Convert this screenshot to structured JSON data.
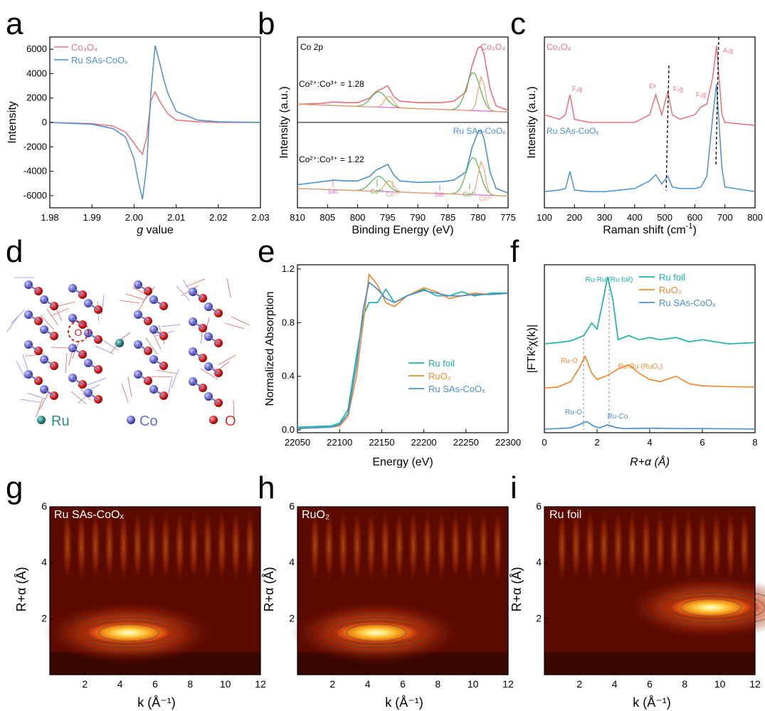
{
  "figure": {
    "panel_letters": [
      "a",
      "b",
      "c",
      "d",
      "e",
      "f",
      "g",
      "h",
      "i"
    ],
    "colors": {
      "co3o4": "#e8707a",
      "ru_sas": "#4a90d0",
      "ru_foil": "#1ab5a8",
      "ruo2": "#f08a30",
      "green": "#4cb84c",
      "pink": "#e070e0",
      "orange_peak": "#f0a070",
      "axis": "#000000"
    }
  },
  "chart_data": [
    {
      "panel": "a",
      "type": "line",
      "xlabel_italic": "g",
      "xlabel_rest": " value",
      "ylabel": "Intensity",
      "xlim": [
        1.98,
        2.03
      ],
      "ylim": [
        -7000,
        7000
      ],
      "xticks": [
        "1.98",
        "1.99",
        "2.00",
        "2.01",
        "2.02",
        "2.03"
      ],
      "yticks": [
        "-6000",
        "-4000",
        "-2000",
        "0",
        "2000",
        "4000",
        "6000"
      ],
      "legend_position": "top-left",
      "series": [
        {
          "name": "Co₃O₄",
          "color": "#e8707a",
          "x": [
            1.98,
            1.99,
            1.995,
            1.998,
            2.0,
            2.001,
            2.002,
            2.003,
            2.004,
            2.005,
            2.006,
            2.008,
            2.01,
            2.015,
            2.02,
            2.03
          ],
          "y": [
            0,
            -100,
            -300,
            -800,
            -1700,
            -2200,
            -2600,
            -1200,
            1800,
            2500,
            1800,
            700,
            200,
            50,
            0,
            0
          ]
        },
        {
          "name": "Ru SAs-CoOₓ",
          "color": "#4a90d0",
          "x": [
            1.98,
            1.99,
            1.995,
            1.998,
            2.0,
            2.001,
            2.002,
            2.003,
            2.004,
            2.005,
            2.006,
            2.007,
            2.008,
            2.01,
            2.015,
            2.02,
            2.03
          ],
          "y": [
            0,
            -150,
            -500,
            -1200,
            -3000,
            -4800,
            -6300,
            -3500,
            2500,
            6300,
            5000,
            3600,
            2400,
            900,
            200,
            50,
            0
          ]
        }
      ]
    },
    {
      "panel": "b",
      "type": "line",
      "xlabel": "Binding Energy (eV)",
      "ylabel": "Intensity (a.u.)",
      "xlim": [
        810,
        775
      ],
      "xticks": [
        "810",
        "805",
        "800",
        "795",
        "790",
        "785",
        "780",
        "775"
      ],
      "labels": {
        "region": "Co 2p",
        "top_sample": "Co₃O₄",
        "bottom_sample": "Ru SAs-CoOₓ",
        "ratio_top": "Co²⁺:Co³⁺ = 1.28",
        "ratio_bottom": "Co²⁺:Co³⁺ = 1.22",
        "sat": "Sat.",
        "co2": "Co²⁺",
        "co3": "Co³⁺"
      },
      "series": [
        {
          "name": "Co₃O₄ data",
          "x": [
            810,
            806,
            804,
            802,
            800,
            798,
            797,
            796,
            795,
            794,
            793,
            790,
            786,
            784,
            782,
            781,
            780,
            779.5,
            779,
            778,
            777,
            775
          ],
          "y": [
            0.2,
            0.21,
            0.23,
            0.22,
            0.22,
            0.28,
            0.36,
            0.4,
            0.44,
            0.3,
            0.24,
            0.22,
            0.22,
            0.24,
            0.36,
            0.7,
            0.93,
            0.95,
            0.85,
            0.4,
            0.18,
            0.12
          ]
        },
        {
          "name": "Ru SAs-CoOₓ data",
          "x": [
            810,
            806,
            804,
            802,
            800,
            798,
            797,
            796,
            795,
            794,
            793,
            790,
            786,
            784,
            782,
            781,
            780,
            779.5,
            779,
            778,
            777,
            775
          ],
          "y": [
            0.25,
            0.29,
            0.31,
            0.3,
            0.3,
            0.36,
            0.44,
            0.48,
            0.52,
            0.38,
            0.3,
            0.28,
            0.29,
            0.31,
            0.42,
            0.74,
            0.95,
            0.97,
            0.86,
            0.42,
            0.2,
            0.14
          ]
        }
      ]
    },
    {
      "panel": "c",
      "type": "line",
      "xlabel_main": "Raman shift (cm",
      "xlabel_sup": "-1",
      "xlabel_end": ")",
      "ylabel": "Intensity (a.u.)",
      "xlim": [
        100,
        800
      ],
      "xticks": [
        "100",
        "200",
        "300",
        "400",
        "500",
        "600",
        "700",
        "800"
      ],
      "peak_labels": [
        "F₂g",
        "Eᵍ",
        "F₂g",
        "F₂g",
        "A₁g"
      ],
      "series": [
        {
          "name": "Co₃O₄",
          "color": "#e8707a",
          "x": [
            100,
            150,
            170,
            185,
            200,
            250,
            300,
            400,
            450,
            470,
            490,
            510,
            525,
            550,
            600,
            620,
            640,
            660,
            672,
            690,
            700,
            800
          ],
          "y": [
            0.55,
            0.52,
            0.55,
            0.68,
            0.52,
            0.5,
            0.5,
            0.5,
            0.55,
            0.68,
            0.55,
            0.7,
            0.55,
            0.52,
            0.55,
            0.6,
            0.62,
            0.8,
            1.0,
            0.55,
            0.5,
            0.48
          ]
        },
        {
          "name": "Ru SAs-CoOₓ",
          "color": "#4a90d0",
          "x": [
            100,
            150,
            170,
            185,
            200,
            250,
            300,
            400,
            450,
            470,
            490,
            510,
            525,
            550,
            600,
            620,
            640,
            660,
            672,
            690,
            700,
            800
          ],
          "y": [
            0.05,
            0.06,
            0.07,
            0.18,
            0.06,
            0.05,
            0.05,
            0.07,
            0.12,
            0.16,
            0.1,
            0.15,
            0.08,
            0.07,
            0.07,
            0.08,
            0.15,
            0.55,
            0.75,
            0.2,
            0.08,
            0.05
          ]
        }
      ]
    },
    {
      "panel": "e",
      "type": "line",
      "xlabel": "Energy (eV)",
      "ylabel": "Normalized Absorption",
      "xlim": [
        22050,
        22300
      ],
      "ylim": [
        0,
        1.2
      ],
      "xticks": [
        "22050",
        "22100",
        "22150",
        "22200",
        "22250",
        "22300"
      ],
      "yticks": [
        "0.0",
        "0.4",
        "0.8",
        "1.2"
      ],
      "legend_position": "bottom-right",
      "series": [
        {
          "name": "Ru foil",
          "color": "#1ab5a8",
          "x": [
            22050,
            22090,
            22100,
            22110,
            22120,
            22128,
            22135,
            22145,
            22155,
            22165,
            22180,
            22200,
            22215,
            22230,
            22245,
            22260,
            22280,
            22300
          ],
          "y": [
            0.02,
            0.03,
            0.05,
            0.15,
            0.55,
            0.85,
            0.95,
            0.95,
            1.05,
            0.95,
            1.0,
            1.05,
            1.0,
            1.0,
            1.03,
            1.0,
            1.02,
            1.02
          ]
        },
        {
          "name": "RuO₂",
          "color": "#f08a30",
          "x": [
            22050,
            22090,
            22100,
            22110,
            22120,
            22128,
            22135,
            22145,
            22155,
            22165,
            22180,
            22200,
            22215,
            22230,
            22245,
            22260,
            22280,
            22300
          ],
          "y": [
            0.01,
            0.02,
            0.03,
            0.1,
            0.4,
            0.8,
            1.16,
            1.08,
            0.95,
            0.92,
            1.0,
            1.06,
            1.03,
            0.98,
            1.0,
            1.02,
            1.01,
            1.02
          ]
        },
        {
          "name": "Ru SAs-CoOₓ",
          "color": "#4a90d0",
          "x": [
            22050,
            22090,
            22100,
            22110,
            22120,
            22128,
            22135,
            22145,
            22155,
            22165,
            22180,
            22200,
            22215,
            22230,
            22245,
            22260,
            22280,
            22300
          ],
          "y": [
            0.01,
            0.02,
            0.04,
            0.12,
            0.48,
            0.9,
            1.1,
            1.05,
            0.98,
            0.95,
            1.0,
            1.04,
            1.02,
            1.0,
            1.0,
            1.01,
            1.01,
            1.02
          ]
        }
      ]
    },
    {
      "panel": "f",
      "type": "line",
      "xlabel": "R+α (Å)",
      "ylabel": "|FTk²χ(k)|",
      "xlim": [
        0,
        8
      ],
      "xticks": [
        "0",
        "2",
        "4",
        "6",
        "8"
      ],
      "annotations": [
        "Ru-Ru (Ru foil)",
        "Ru-O",
        "Ru-Ru (RuO₂)",
        "Ru-O",
        "Ru-Co"
      ],
      "legend_position": "top-right",
      "series": [
        {
          "name": "Ru foil",
          "color": "#1ab5a8",
          "x": [
            0,
            0.5,
            1.0,
            1.5,
            1.8,
            2.0,
            2.2,
            2.4,
            2.6,
            2.8,
            3.2,
            3.6,
            4.0,
            4.4,
            5.0,
            5.5,
            6.0,
            7.0,
            8.0
          ],
          "y": [
            2.05,
            2.08,
            2.12,
            2.25,
            2.55,
            2.4,
            3.0,
            3.65,
            3.1,
            2.15,
            2.25,
            2.15,
            2.2,
            2.15,
            2.2,
            2.1,
            2.15,
            2.05,
            2.08
          ]
        },
        {
          "name": "RuO₂",
          "color": "#f08a30",
          "x": [
            0,
            0.5,
            1.0,
            1.3,
            1.55,
            1.8,
            2.0,
            2.4,
            2.8,
            3.2,
            3.6,
            4.0,
            4.4,
            5.0,
            5.5,
            6.0,
            7.0,
            8.0
          ],
          "y": [
            1.0,
            1.02,
            1.15,
            1.45,
            1.75,
            1.35,
            1.2,
            1.3,
            1.45,
            1.55,
            1.35,
            1.2,
            1.15,
            1.28,
            1.1,
            1.05,
            1.03,
            1.02
          ]
        },
        {
          "name": "Ru SAs-CoOₓ",
          "color": "#4a90d0",
          "x": [
            0,
            0.5,
            1.0,
            1.3,
            1.6,
            1.9,
            2.1,
            2.4,
            2.7,
            3.0,
            4.0,
            5.0,
            6.0,
            8.0
          ],
          "y": [
            0.02,
            0.03,
            0.05,
            0.12,
            0.2,
            0.08,
            0.05,
            0.12,
            0.06,
            0.03,
            0.04,
            0.03,
            0.03,
            0.02
          ]
        }
      ]
    },
    {
      "panel": "g",
      "type": "heatmap",
      "title": "Ru SAs-CoOₓ",
      "xlabel": "k (Å⁻¹)",
      "ylabel": "R+α (Å)",
      "xlim": [
        0,
        12
      ],
      "ylim": [
        0,
        6
      ],
      "xticks": [
        "2",
        "4",
        "6",
        "8",
        "10",
        "12"
      ],
      "yticks": [
        "2",
        "4",
        "6"
      ],
      "peak": {
        "k": 4.5,
        "r": 1.5
      }
    },
    {
      "panel": "h",
      "type": "heatmap",
      "title": "RuO₂",
      "xlabel": "k (Å⁻¹)",
      "ylabel": "R+α (Å)",
      "xlim": [
        0,
        12
      ],
      "ylim": [
        0,
        6
      ],
      "xticks": [
        "2",
        "4",
        "6",
        "8",
        "10",
        "12"
      ],
      "yticks": [
        "2",
        "4",
        "6"
      ],
      "peak": {
        "k": 4.5,
        "r": 1.5
      }
    },
    {
      "panel": "i",
      "type": "heatmap",
      "title": "Ru foil",
      "xlabel": "k (Å⁻¹)",
      "ylabel": "R+α (Å)",
      "xlim": [
        0,
        12
      ],
      "ylim": [
        0,
        6
      ],
      "xticks": [
        "2",
        "4",
        "6",
        "8",
        "10",
        "12"
      ],
      "yticks": [
        "2",
        "4",
        "6"
      ],
      "peak": {
        "k": 9.5,
        "r": 2.4
      }
    }
  ],
  "structure_panel": {
    "legend": [
      {
        "label": "Ru",
        "color": "#2e8b8b"
      },
      {
        "label": "Co",
        "color": "#6a6ad8"
      },
      {
        "label": "O",
        "color": "#d83030"
      }
    ],
    "vacancy_label": "O"
  }
}
